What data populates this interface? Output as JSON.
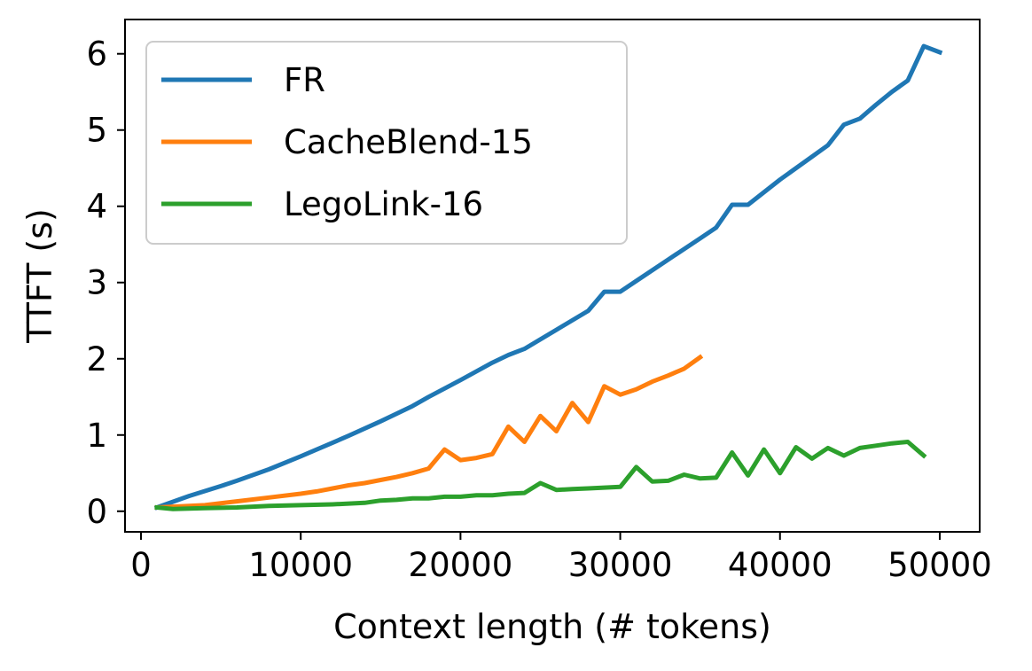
{
  "chart_data": {
    "type": "line",
    "xlabel": "Context length (# tokens)",
    "ylabel": "TTFT (s)",
    "xlim": [
      -1000,
      52500
    ],
    "ylim": [
      -0.27,
      6.45
    ],
    "xticks": [
      0,
      10000,
      20000,
      30000,
      40000,
      50000
    ],
    "yticks": [
      0,
      1,
      2,
      3,
      4,
      5,
      6
    ],
    "grid": false,
    "legend_position": "top-left",
    "series": [
      {
        "name": "FR",
        "color": "#1f77b4",
        "points": [
          [
            1000,
            0.05
          ],
          [
            3000,
            0.2
          ],
          [
            5000,
            0.33
          ],
          [
            6000,
            0.4
          ],
          [
            8000,
            0.55
          ],
          [
            10000,
            0.72
          ],
          [
            12000,
            0.9
          ],
          [
            13000,
            0.99
          ],
          [
            15000,
            1.18
          ],
          [
            17000,
            1.38
          ],
          [
            18000,
            1.5
          ],
          [
            20000,
            1.72
          ],
          [
            22000,
            1.95
          ],
          [
            23000,
            2.05
          ],
          [
            24000,
            2.13
          ],
          [
            26000,
            2.38
          ],
          [
            28000,
            2.63
          ],
          [
            29000,
            2.88
          ],
          [
            30000,
            2.88
          ],
          [
            31000,
            3.02
          ],
          [
            33000,
            3.3
          ],
          [
            35000,
            3.58
          ],
          [
            36000,
            3.72
          ],
          [
            37000,
            4.02
          ],
          [
            38000,
            4.02
          ],
          [
            40000,
            4.35
          ],
          [
            42000,
            4.65
          ],
          [
            43000,
            4.8
          ],
          [
            44000,
            5.07
          ],
          [
            45000,
            5.15
          ],
          [
            46000,
            5.33
          ],
          [
            47000,
            5.5
          ],
          [
            48000,
            5.65
          ],
          [
            49000,
            6.1
          ],
          [
            50000,
            6.02
          ]
        ]
      },
      {
        "name": "CacheBlend-15",
        "color": "#ff7f0e",
        "points": [
          [
            1000,
            0.05
          ],
          [
            4000,
            0.08
          ],
          [
            6000,
            0.13
          ],
          [
            8000,
            0.18
          ],
          [
            10000,
            0.23
          ],
          [
            11000,
            0.26
          ],
          [
            12000,
            0.3
          ],
          [
            13000,
            0.34
          ],
          [
            14000,
            0.37
          ],
          [
            15000,
            0.41
          ],
          [
            16000,
            0.45
          ],
          [
            17000,
            0.5
          ],
          [
            18000,
            0.56
          ],
          [
            19000,
            0.81
          ],
          [
            20000,
            0.67
          ],
          [
            21000,
            0.7
          ],
          [
            22000,
            0.75
          ],
          [
            23000,
            1.11
          ],
          [
            24000,
            0.91
          ],
          [
            25000,
            1.25
          ],
          [
            26000,
            1.05
          ],
          [
            27000,
            1.42
          ],
          [
            28000,
            1.17
          ],
          [
            29000,
            1.64
          ],
          [
            30000,
            1.53
          ],
          [
            31000,
            1.6
          ],
          [
            32000,
            1.7
          ],
          [
            33000,
            1.78
          ],
          [
            34000,
            1.87
          ],
          [
            35000,
            2.02
          ]
        ]
      },
      {
        "name": "LegoLink-16",
        "color": "#2ca02c",
        "points": [
          [
            1000,
            0.05
          ],
          [
            2000,
            0.03
          ],
          [
            4000,
            0.04
          ],
          [
            6000,
            0.05
          ],
          [
            8000,
            0.07
          ],
          [
            10000,
            0.08
          ],
          [
            12000,
            0.09
          ],
          [
            14000,
            0.11
          ],
          [
            15000,
            0.14
          ],
          [
            16000,
            0.15
          ],
          [
            17000,
            0.17
          ],
          [
            18000,
            0.17
          ],
          [
            19000,
            0.19
          ],
          [
            20000,
            0.19
          ],
          [
            21000,
            0.21
          ],
          [
            22000,
            0.21
          ],
          [
            23000,
            0.23
          ],
          [
            24000,
            0.24
          ],
          [
            25000,
            0.37
          ],
          [
            26000,
            0.28
          ],
          [
            27000,
            0.29
          ],
          [
            28000,
            0.3
          ],
          [
            29000,
            0.31
          ],
          [
            30000,
            0.32
          ],
          [
            31000,
            0.58
          ],
          [
            32000,
            0.39
          ],
          [
            33000,
            0.4
          ],
          [
            34000,
            0.48
          ],
          [
            35000,
            0.43
          ],
          [
            36000,
            0.44
          ],
          [
            37000,
            0.77
          ],
          [
            38000,
            0.47
          ],
          [
            39000,
            0.81
          ],
          [
            40000,
            0.5
          ],
          [
            41000,
            0.84
          ],
          [
            42000,
            0.69
          ],
          [
            43000,
            0.83
          ],
          [
            44000,
            0.73
          ],
          [
            45000,
            0.83
          ],
          [
            46000,
            0.86
          ],
          [
            47000,
            0.89
          ],
          [
            48000,
            0.91
          ],
          [
            49000,
            0.73
          ]
        ]
      }
    ]
  }
}
